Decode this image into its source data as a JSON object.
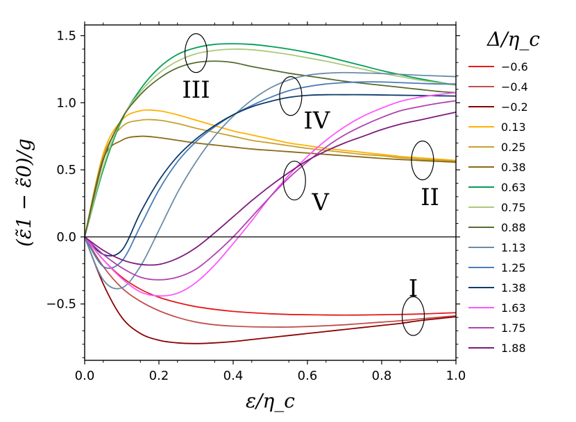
{
  "chart_data": {
    "type": "line",
    "title": "",
    "xlabel": "ε/η_c",
    "ylabel": "(ε̃1 − ε̃0)/g",
    "xlim": [
      0.0,
      1.0
    ],
    "ylim": [
      -0.92,
      1.58
    ],
    "xticks": [
      "0.0",
      "0.2",
      "0.4",
      "0.6",
      "0.8",
      "1.0"
    ],
    "yticks": [
      "−0.5",
      "0.0",
      "0.5",
      "1.0",
      "1.5"
    ],
    "grid": false,
    "legend_title": "Δ/η_c",
    "legend_position": "right",
    "zero_line": 0.0,
    "x": [
      0.0,
      0.05,
      0.1,
      0.15,
      0.2,
      0.25,
      0.3,
      0.35,
      0.4,
      0.45,
      0.5,
      0.55,
      0.6,
      0.65,
      0.7,
      0.75,
      0.8,
      0.85,
      0.9,
      0.95,
      1.0
    ],
    "series": [
      {
        "name": "−0.6",
        "color": "#e41a1c",
        "values": [
          0.0,
          -0.17,
          -0.3,
          -0.39,
          -0.45,
          -0.49,
          -0.52,
          -0.54,
          -0.555,
          -0.565,
          -0.573,
          -0.578,
          -0.58,
          -0.582,
          -0.583,
          -0.582,
          -0.58,
          -0.578,
          -0.575,
          -0.57,
          -0.565
        ]
      },
      {
        "name": "−0.4",
        "color": "#c0504d",
        "values": [
          0.0,
          -0.22,
          -0.38,
          -0.48,
          -0.55,
          -0.6,
          -0.635,
          -0.655,
          -0.665,
          -0.67,
          -0.672,
          -0.672,
          -0.668,
          -0.662,
          -0.655,
          -0.645,
          -0.635,
          -0.625,
          -0.612,
          -0.6,
          -0.588
        ]
      },
      {
        "name": "−0.2",
        "color": "#8b0000",
        "values": [
          0.0,
          -0.35,
          -0.6,
          -0.72,
          -0.77,
          -0.79,
          -0.795,
          -0.79,
          -0.78,
          -0.765,
          -0.75,
          -0.735,
          -0.72,
          -0.705,
          -0.69,
          -0.675,
          -0.66,
          -0.645,
          -0.625,
          -0.61,
          -0.595
        ]
      },
      {
        "name": "0.13",
        "color": "#ffb000",
        "values": [
          0.0,
          0.62,
          0.87,
          0.94,
          0.94,
          0.91,
          0.87,
          0.83,
          0.79,
          0.76,
          0.73,
          0.7,
          0.68,
          0.66,
          0.645,
          0.63,
          0.615,
          0.6,
          0.59,
          0.58,
          0.57
        ]
      },
      {
        "name": "0.25",
        "color": "#c8a030",
        "values": [
          0.0,
          0.6,
          0.82,
          0.87,
          0.87,
          0.845,
          0.81,
          0.78,
          0.75,
          0.72,
          0.7,
          0.68,
          0.66,
          0.645,
          0.63,
          0.615,
          0.605,
          0.59,
          0.58,
          0.572,
          0.565
        ]
      },
      {
        "name": "0.38",
        "color": "#8b6914",
        "values": [
          0.0,
          0.58,
          0.72,
          0.75,
          0.74,
          0.72,
          0.7,
          0.685,
          0.67,
          0.655,
          0.645,
          0.635,
          0.625,
          0.615,
          0.605,
          0.595,
          0.585,
          0.577,
          0.57,
          0.563,
          0.557
        ]
      },
      {
        "name": "0.63",
        "color": "#009e55",
        "values": [
          0.0,
          0.5,
          0.87,
          1.1,
          1.26,
          1.36,
          1.41,
          1.435,
          1.44,
          1.435,
          1.42,
          1.4,
          1.375,
          1.345,
          1.31,
          1.275,
          1.24,
          1.21,
          1.18,
          1.155,
          1.13
        ]
      },
      {
        "name": "0.75",
        "color": "#a9c97a",
        "values": [
          0.0,
          0.52,
          0.88,
          1.08,
          1.22,
          1.31,
          1.365,
          1.39,
          1.4,
          1.395,
          1.38,
          1.36,
          1.335,
          1.31,
          1.28,
          1.25,
          1.22,
          1.195,
          1.17,
          1.15,
          1.13
        ]
      },
      {
        "name": "0.88",
        "color": "#556b2f",
        "values": [
          0.0,
          0.57,
          0.88,
          1.06,
          1.18,
          1.26,
          1.3,
          1.31,
          1.3,
          1.27,
          1.245,
          1.22,
          1.2,
          1.18,
          1.16,
          1.145,
          1.13,
          1.115,
          1.1,
          1.085,
          1.075
        ]
      },
      {
        "name": "1.13",
        "color": "#6a8ca8",
        "values": [
          0.0,
          -0.32,
          -0.38,
          -0.22,
          0.05,
          0.33,
          0.56,
          0.75,
          0.9,
          1.02,
          1.11,
          1.17,
          1.205,
          1.22,
          1.225,
          1.222,
          1.218,
          1.212,
          1.205,
          1.2,
          1.195
        ]
      },
      {
        "name": "1.25",
        "color": "#4a7cb8",
        "values": [
          0.0,
          -0.22,
          -0.18,
          0.08,
          0.35,
          0.56,
          0.71,
          0.82,
          0.91,
          0.98,
          1.04,
          1.09,
          1.12,
          1.14,
          1.15,
          1.155,
          1.155,
          1.15,
          1.145,
          1.14,
          1.14
        ]
      },
      {
        "name": "1.38",
        "color": "#0b3a6a",
        "values": [
          0.0,
          -0.13,
          -0.1,
          0.18,
          0.42,
          0.6,
          0.73,
          0.83,
          0.91,
          0.97,
          1.01,
          1.04,
          1.055,
          1.06,
          1.06,
          1.06,
          1.058,
          1.056,
          1.054,
          1.052,
          1.05
        ]
      },
      {
        "name": "1.63",
        "color": "#ff55ff",
        "values": [
          0.0,
          -0.17,
          -0.31,
          -0.41,
          -0.44,
          -0.42,
          -0.34,
          -0.21,
          -0.05,
          0.12,
          0.3,
          0.46,
          0.6,
          0.72,
          0.82,
          0.9,
          0.96,
          1.01,
          1.04,
          1.06,
          1.075
        ]
      },
      {
        "name": "1.75",
        "color": "#b040b0",
        "values": [
          0.0,
          -0.13,
          -0.23,
          -0.3,
          -0.32,
          -0.3,
          -0.24,
          -0.13,
          0.0,
          0.15,
          0.3,
          0.44,
          0.56,
          0.67,
          0.76,
          0.83,
          0.89,
          0.94,
          0.97,
          0.995,
          1.015
        ]
      },
      {
        "name": "1.88",
        "color": "#7b1a7b",
        "values": [
          0.0,
          -0.1,
          -0.17,
          -0.205,
          -0.205,
          -0.16,
          -0.08,
          0.03,
          0.15,
          0.27,
          0.38,
          0.48,
          0.57,
          0.64,
          0.7,
          0.75,
          0.8,
          0.84,
          0.87,
          0.9,
          0.93
        ]
      }
    ],
    "annotations": [
      {
        "label": "I",
        "x": 0.885,
        "y": -0.59,
        "text_x": 0.885,
        "text_y": -0.38
      },
      {
        "label": "II",
        "x": 0.91,
        "y": 0.57,
        "text_x": 0.93,
        "text_y": 0.3
      },
      {
        "label": "III",
        "x": 0.3,
        "y": 1.37,
        "text_x": 0.3,
        "text_y": 1.1
      },
      {
        "label": "IV",
        "x": 0.555,
        "y": 1.05,
        "text_x": 0.625,
        "text_y": 0.87
      },
      {
        "label": "V",
        "x": 0.565,
        "y": 0.42,
        "text_x": 0.635,
        "text_y": 0.26
      }
    ]
  }
}
